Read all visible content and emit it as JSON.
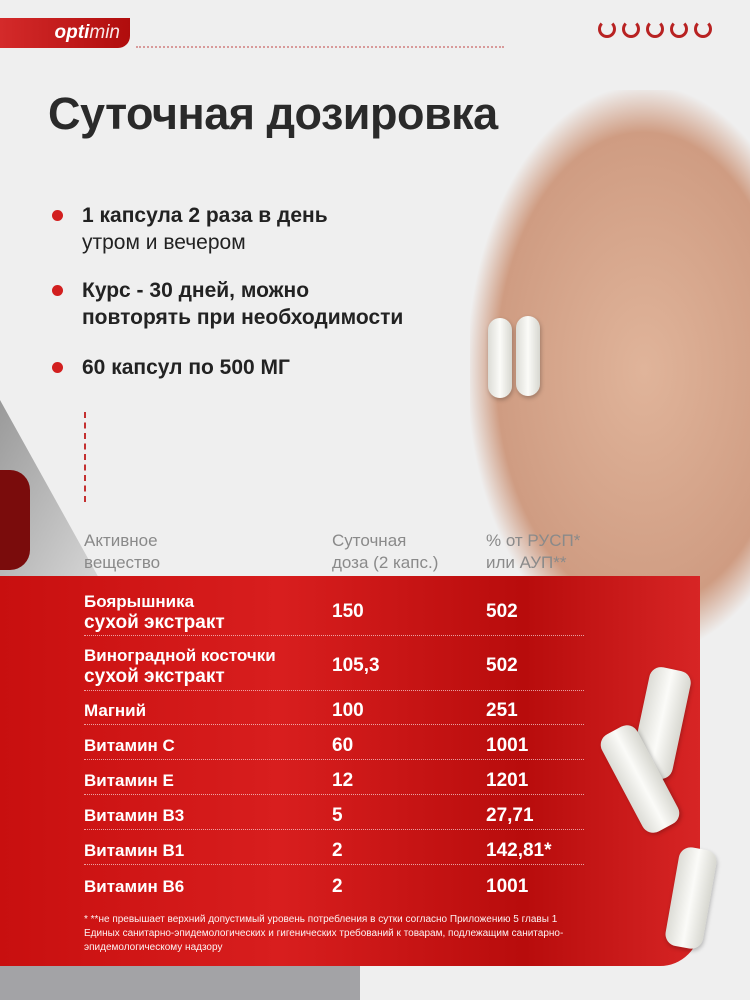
{
  "brand": {
    "logo_bold": "opti",
    "logo_light": "min",
    "accent": "#d21f1f"
  },
  "title": "Суточная дозировка",
  "bullets": [
    {
      "line1": "1 капсула 2 раза в день",
      "line2": "утром и вечером"
    },
    {
      "line1": "Курс - 30 дней, можно",
      "line2": "повторять  при необходимости"
    },
    {
      "line1": "60 капсул по 500 МГ",
      "line2": ""
    }
  ],
  "table": {
    "headers": [
      [
        "Активное",
        "вещество"
      ],
      [
        "Суточная",
        "доза (2 капс.)"
      ],
      [
        "% от РУСП*",
        "или АУП**"
      ]
    ],
    "rows": [
      {
        "name1": "Боярышника",
        "name2": "сухой экстракт",
        "dose": "150",
        "pct": "502"
      },
      {
        "name1": "Виноградной косточки",
        "name2": "сухой экстракт",
        "dose": "105,3",
        "pct": "502"
      },
      {
        "name1": "Магний",
        "name2": "",
        "dose": "100",
        "pct": "251"
      },
      {
        "name1": "Витамин С",
        "name2": "",
        "dose": "60",
        "pct": "1001"
      },
      {
        "name1": "Витамин Е",
        "name2": "",
        "dose": "12",
        "pct": "1201"
      },
      {
        "name1": "Витамин В3",
        "name2": "",
        "dose": "5",
        "pct": "27,71"
      },
      {
        "name1": "Витамин В1",
        "name2": "",
        "dose": "2",
        "pct": "142,81*"
      },
      {
        "name1": "Витамин В6",
        "name2": "",
        "dose": "2",
        "pct": "1001"
      }
    ],
    "footnote": "* **не превышает верхний допустимый уровень потребления в сутки согласно Приложению 5 главы 1 Единых санитарно-эпидемологических и гигенических требований к товарам, подлежащим санитарно-эпидемологическому надзору"
  }
}
